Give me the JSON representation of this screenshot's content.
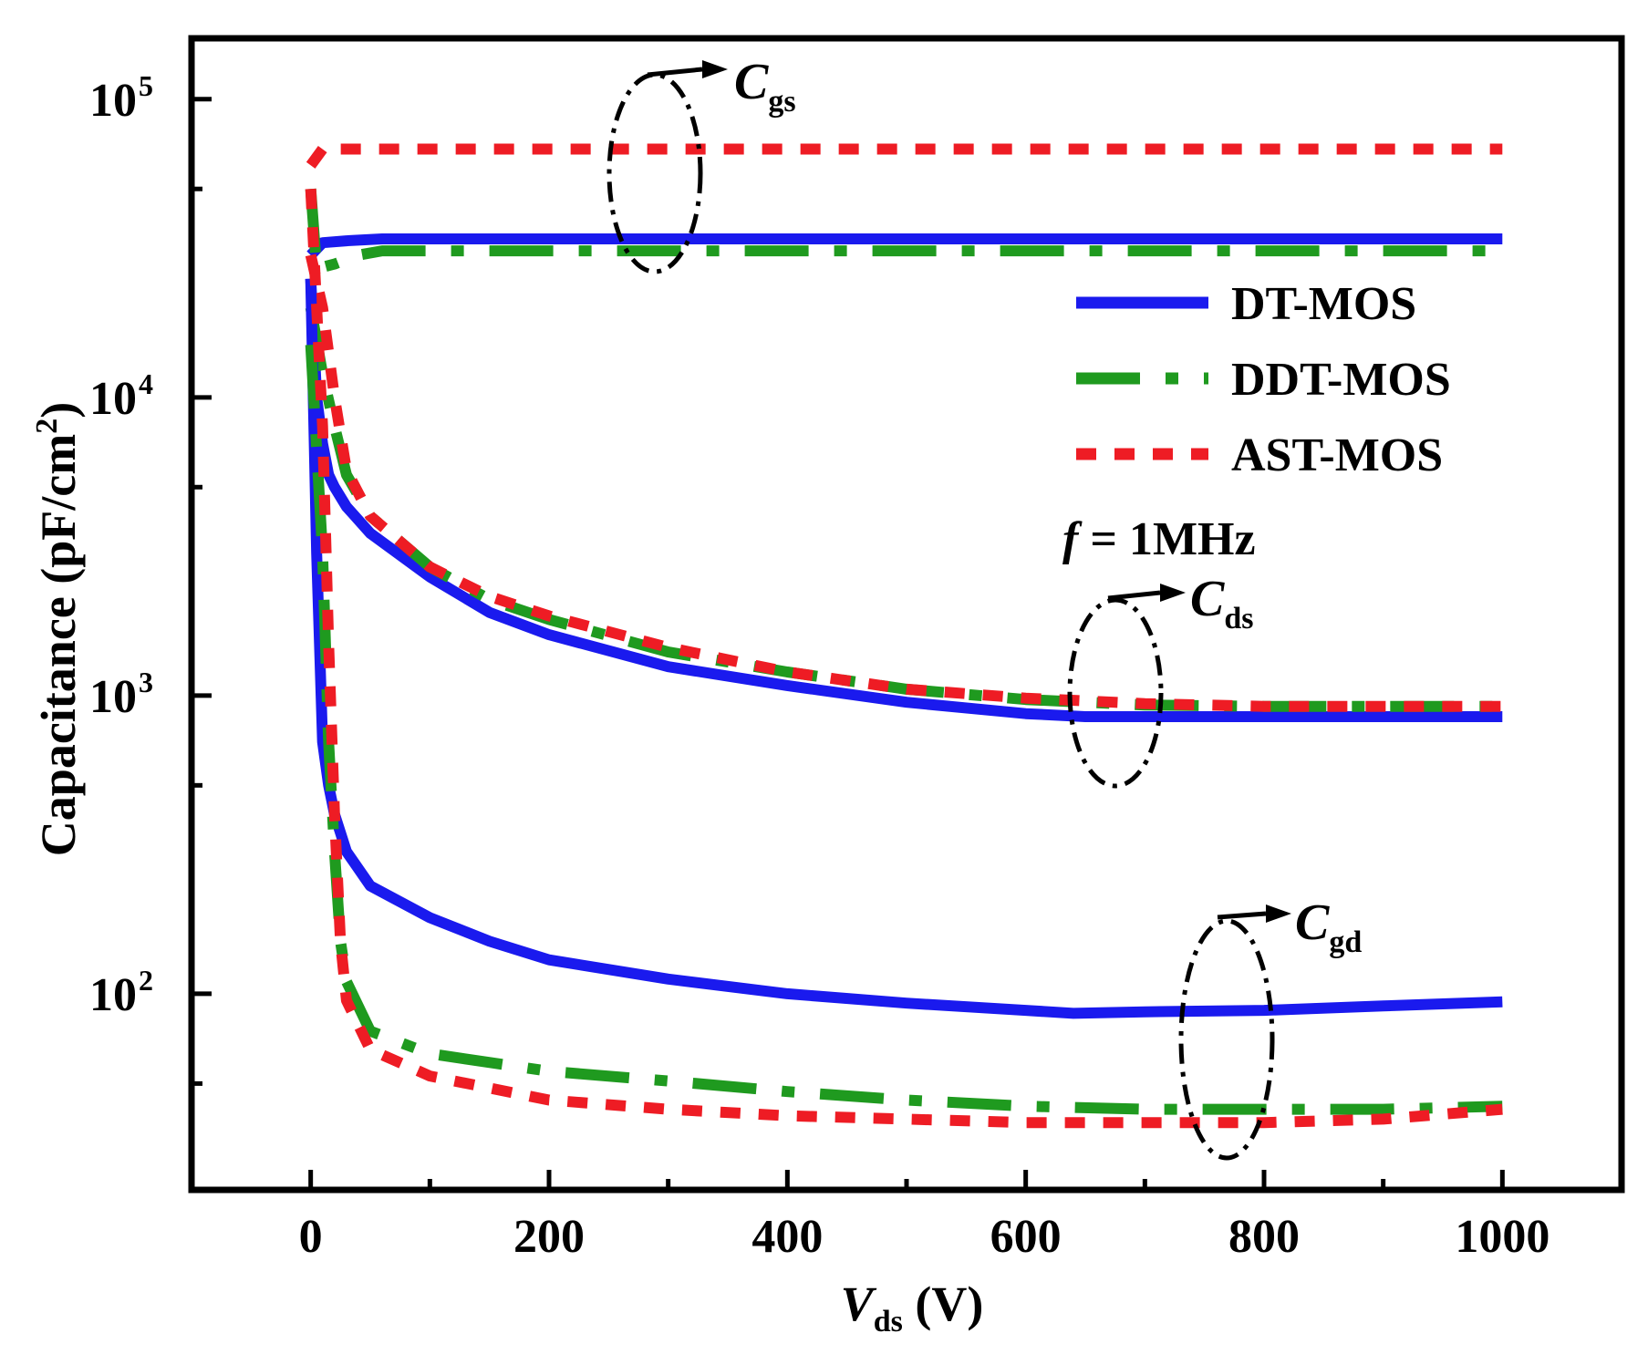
{
  "chart_data": {
    "type": "line",
    "title": "",
    "xlabel": {
      "main": "V",
      "sub": "ds",
      "unit": " (V)"
    },
    "ylabel": {
      "main": "Capacitance (pF/cm",
      "sup": "2",
      "end": ")"
    },
    "x_scale": "linear",
    "y_scale": "log",
    "xlim": [
      -100,
      1100
    ],
    "ylim": [
      22,
      160000
    ],
    "x_ticks": [
      0,
      200,
      400,
      600,
      800,
      1000
    ],
    "x_tick_labels": [
      "0",
      "200",
      "400",
      "600",
      "800",
      "1000"
    ],
    "y_ticks": [
      100,
      1000,
      10000,
      100000
    ],
    "y_tick_labels": [
      {
        "base": "10",
        "exp": "2"
      },
      {
        "base": "10",
        "exp": "3"
      },
      {
        "base": "10",
        "exp": "4"
      },
      {
        "base": "10",
        "exp": "5"
      }
    ],
    "frequency_note": {
      "italic": "f",
      "text": " = 1MHz"
    },
    "legend": {
      "position": "upper-right",
      "entries": [
        {
          "label": "DT-MOS",
          "series_key": "DT-MOS"
        },
        {
          "label": "DDT-MOS",
          "series_key": "DDT-MOS"
        },
        {
          "label": "AST-MOS",
          "series_key": "AST-MOS"
        }
      ]
    },
    "styles": {
      "DT-MOS": {
        "color": "#1a1aee",
        "dash": "solid"
      },
      "DDT-MOS": {
        "color": "#1f9a1f",
        "dash": "dashdot"
      },
      "AST-MOS": {
        "color": "#ee1c24",
        "dash": "dotted"
      }
    },
    "series": [
      {
        "name": "DT-MOS",
        "group": "Cgs",
        "x": [
          0,
          10,
          30,
          60,
          100,
          200,
          400,
          600,
          800,
          1000
        ],
        "y": [
          30000,
          33000,
          33500,
          34000,
          34000,
          34000,
          34000,
          34000,
          34000,
          34000
        ]
      },
      {
        "name": "DDT-MOS",
        "group": "Cgs",
        "x": [
          0,
          5,
          20,
          40,
          60,
          100,
          200,
          400,
          600,
          800,
          1000
        ],
        "y": [
          50000,
          27000,
          28000,
          30000,
          31000,
          31000,
          31000,
          31000,
          31000,
          31000,
          31000
        ]
      },
      {
        "name": "AST-MOS",
        "group": "Cgs",
        "x": [
          0,
          10,
          20,
          40,
          100,
          200,
          400,
          600,
          800,
          1000
        ],
        "y": [
          60000,
          68000,
          68000,
          68000,
          68000,
          68000,
          68000,
          68000,
          68000,
          68000
        ]
      },
      {
        "name": "DT-MOS",
        "group": "Cds",
        "x": [
          0,
          5,
          10,
          15,
          20,
          30,
          50,
          100,
          150,
          200,
          300,
          400,
          500,
          600,
          650,
          700,
          800,
          900,
          1000
        ],
        "y": [
          25000,
          10000,
          7000,
          5500,
          5000,
          4300,
          3500,
          2500,
          1900,
          1600,
          1250,
          1080,
          950,
          870,
          850,
          850,
          850,
          850,
          850
        ]
      },
      {
        "name": "DDT-MOS",
        "group": "Cds",
        "x": [
          0,
          10,
          20,
          30,
          50,
          100,
          150,
          200,
          300,
          400,
          500,
          600,
          700,
          800,
          1000
        ],
        "y": [
          20000,
          12000,
          8000,
          5500,
          4000,
          2700,
          2100,
          1800,
          1400,
          1200,
          1050,
          970,
          930,
          920,
          920
        ]
      },
      {
        "name": "AST-MOS",
        "group": "Cds",
        "x": [
          0,
          10,
          20,
          30,
          50,
          100,
          150,
          200,
          300,
          400,
          500,
          600,
          700,
          800,
          1000
        ],
        "y": [
          30000,
          20000,
          10000,
          5700,
          4000,
          2700,
          2150,
          1850,
          1450,
          1200,
          1050,
          980,
          940,
          920,
          920
        ]
      },
      {
        "name": "DT-MOS",
        "group": "Cgd",
        "x": [
          0,
          5,
          10,
          15,
          20,
          30,
          50,
          100,
          150,
          200,
          300,
          400,
          500,
          600,
          640,
          700,
          800,
          900,
          1000
        ],
        "y": [
          25000,
          3000,
          700,
          500,
          400,
          300,
          230,
          180,
          150,
          130,
          112,
          100,
          93,
          88,
          86,
          87,
          88,
          91,
          94
        ]
      },
      {
        "name": "DDT-MOS",
        "group": "Cgd",
        "x": [
          0,
          10,
          15,
          20,
          25,
          30,
          50,
          100,
          200,
          300,
          400,
          500,
          600,
          700,
          800,
          900,
          1000
        ],
        "y": [
          15000,
          3000,
          700,
          300,
          150,
          110,
          75,
          63,
          55,
          51,
          47,
          44,
          42,
          41,
          41,
          41,
          42
        ]
      },
      {
        "name": "AST-MOS",
        "group": "Cgd",
        "x": [
          0,
          10,
          15,
          20,
          25,
          30,
          50,
          100,
          200,
          300,
          400,
          500,
          600,
          700,
          800,
          900,
          1000
        ],
        "y": [
          50000,
          8000,
          1500,
          400,
          150,
          95,
          65,
          53,
          44,
          41,
          39,
          38,
          37,
          37,
          37,
          38,
          41
        ]
      }
    ],
    "annotations": [
      {
        "name": "cgs",
        "main": "C",
        "sub": "gs"
      },
      {
        "name": "cds",
        "main": "C",
        "sub": "ds"
      },
      {
        "name": "cgd",
        "main": "C",
        "sub": "gd"
      }
    ]
  }
}
